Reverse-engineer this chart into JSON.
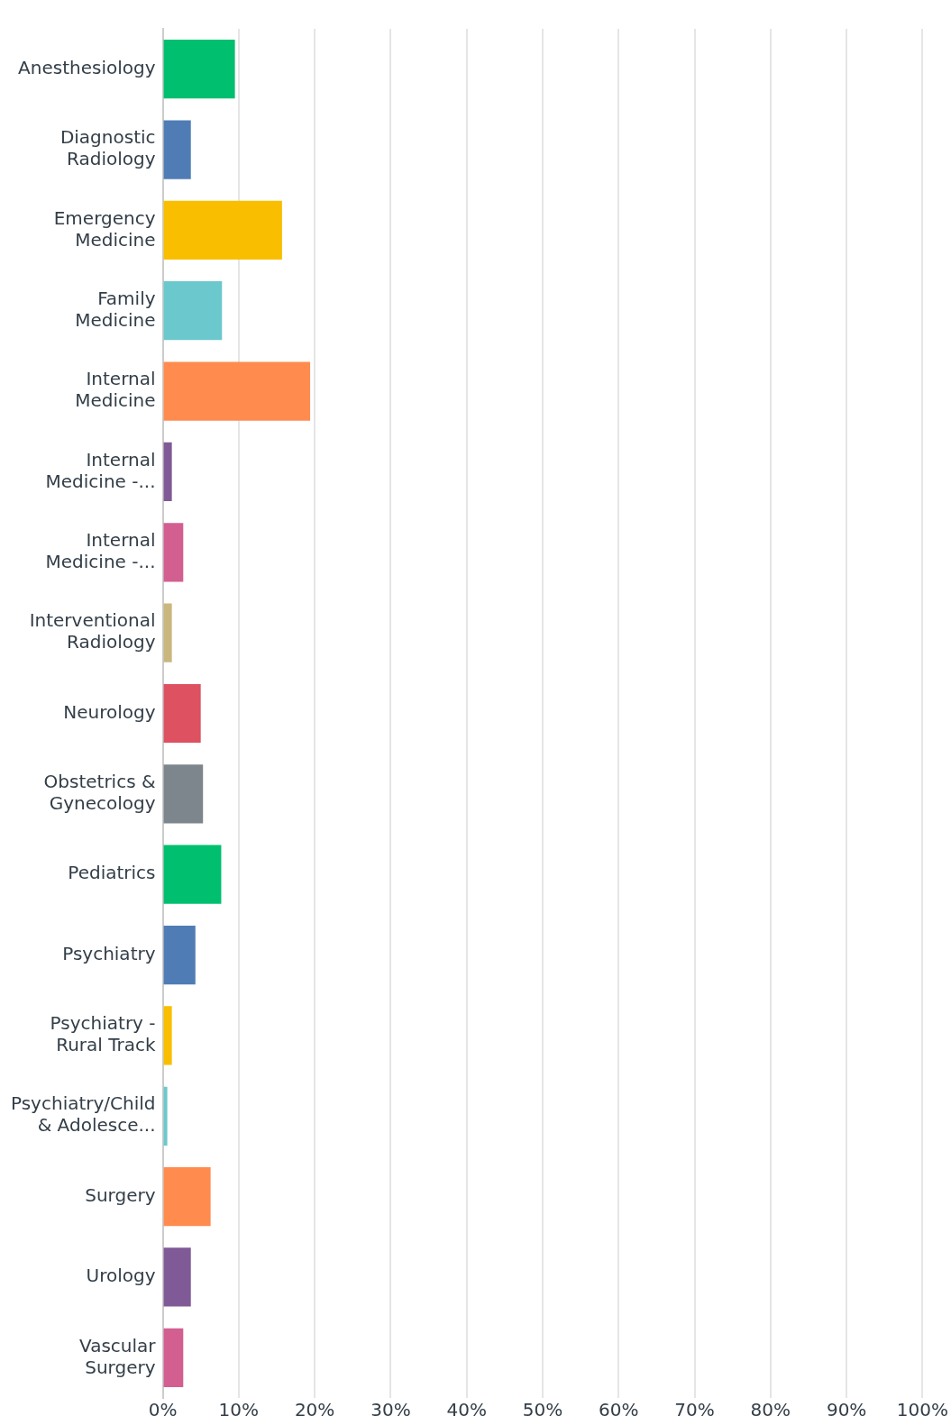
{
  "chart_data": {
    "type": "bar",
    "orientation": "horizontal",
    "categories": [
      "Anesthesiology",
      "Diagnostic Radiology",
      "Emergency Medicine",
      "Family Medicine",
      "Internal Medicine",
      "Internal Medicine -...",
      "Internal Medicine -...",
      "Interventional Radiology",
      "Neurology",
      "Obstetrics & Gynecology",
      "Pediatrics",
      "Psychiatry",
      "Psychiatry - Rural Track",
      "Psychiatry/Child & Adolesce...",
      "Surgery",
      "Urology",
      "Vascular Surgery"
    ],
    "values": [
      9.5,
      3.7,
      15.7,
      7.8,
      19.4,
      1.2,
      2.7,
      1.2,
      5.0,
      5.3,
      7.7,
      4.3,
      1.2,
      0.6,
      6.3,
      3.7,
      2.7
    ],
    "colors": [
      "#00bf6f",
      "#507cb6",
      "#f9be00",
      "#6bc8cd",
      "#ff8b4f",
      "#7f5a96",
      "#d25f90",
      "#c9b77d",
      "#dd5160",
      "#7d868c",
      "#00bf6f",
      "#507cb6",
      "#f9be00",
      "#6bc8cd",
      "#ff8b4f",
      "#7f5a96",
      "#d25f90"
    ],
    "xlim": [
      0,
      100
    ],
    "xticks": [
      {
        "value": 0,
        "label": "0%"
      },
      {
        "value": 10,
        "label": "10%"
      },
      {
        "value": 20,
        "label": "20%"
      },
      {
        "value": 30,
        "label": "30%"
      },
      {
        "value": 40,
        "label": "40%"
      },
      {
        "value": 50,
        "label": "50%"
      },
      {
        "value": 60,
        "label": "60%"
      },
      {
        "value": 70,
        "label": "70%"
      },
      {
        "value": 80,
        "label": "80%"
      },
      {
        "value": 90,
        "label": "90%"
      },
      {
        "value": 100,
        "label": "100%"
      }
    ],
    "grid": "x",
    "legend": false
  }
}
